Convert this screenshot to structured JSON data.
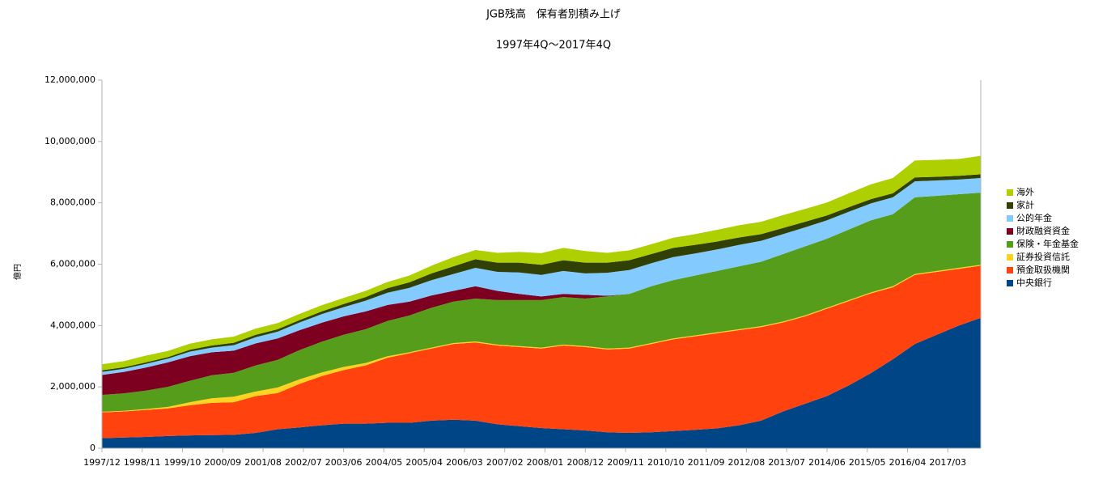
{
  "chart_data": {
    "type": "stacked-area",
    "title": "JGB残高　保有者別積み上げ",
    "subtitle": "1997年4Q～2017年4Q",
    "y_label": "億円",
    "x": [
      "1997/12",
      "1998/06",
      "1998/12",
      "1999/06",
      "1999/12",
      "2000/06",
      "2000/12",
      "2001/06",
      "2001/12",
      "2002/06",
      "2002/12",
      "2003/06",
      "2003/12",
      "2004/06",
      "2004/12",
      "2005/06",
      "2005/12",
      "2006/06",
      "2006/12",
      "2007/06",
      "2007/12",
      "2008/06",
      "2008/12",
      "2009/06",
      "2009/12",
      "2010/06",
      "2010/12",
      "2011/06",
      "2011/12",
      "2012/06",
      "2012/12",
      "2013/06",
      "2013/12",
      "2014/06",
      "2014/12",
      "2015/06",
      "2015/12",
      "2016/06",
      "2016/12",
      "2017/06",
      "2017/12"
    ],
    "xlim": [
      "1997/12",
      "2017/12"
    ],
    "xticks": [
      "1997/12",
      "1998/11",
      "1999/10",
      "2000/09",
      "2001/08",
      "2002/07",
      "2003/06",
      "2004/05",
      "2005/04",
      "2006/03",
      "2007/02",
      "2008/01",
      "2008/12",
      "2009/11",
      "2010/10",
      "2011/09",
      "2012/08",
      "2013/07",
      "2014/06",
      "2015/05",
      "2016/04",
      "2017/03"
    ],
    "ylim": [
      0,
      12000000
    ],
    "yticks": [
      0,
      {
        "value": 2000000,
        "label": "2,000,000"
      },
      {
        "value": 4000000,
        "label": "4,000,000"
      },
      {
        "value": 6000000,
        "label": "6,000,000"
      },
      {
        "value": 8000000,
        "label": "8,000,000"
      },
      {
        "value": 10000000,
        "label": "10,000,000"
      },
      {
        "value": 12000000,
        "label": "12,000,000"
      }
    ],
    "series": [
      {
        "name": "中央銀行",
        "color": "#004586",
        "values": [
          330000,
          350000,
          370000,
          400000,
          420000,
          430000,
          440000,
          500000,
          620000,
          680000,
          750000,
          800000,
          800000,
          830000,
          830000,
          900000,
          930000,
          900000,
          780000,
          720000,
          660000,
          620000,
          580000,
          520000,
          500000,
          520000,
          560000,
          600000,
          650000,
          750000,
          900000,
          1200000,
          1450000,
          1700000,
          2050000,
          2450000,
          2900000,
          3400000,
          3700000,
          4000000,
          4250000
        ]
      },
      {
        "name": "預金取扱機関",
        "color": "#ff420e",
        "values": [
          840000,
          850000,
          880000,
          900000,
          980000,
          1050000,
          1060000,
          1200000,
          1180000,
          1420000,
          1600000,
          1750000,
          1900000,
          2120000,
          2270000,
          2350000,
          2470000,
          2550000,
          2570000,
          2580000,
          2590000,
          2730000,
          2720000,
          2700000,
          2750000,
          2880000,
          2990000,
          3050000,
          3100000,
          3100000,
          3050000,
          2900000,
          2850000,
          2850000,
          2750000,
          2600000,
          2350000,
          2250000,
          2050000,
          1850000,
          1700000
        ]
      },
      {
        "name": "証券投資信託",
        "color": "#ffd320",
        "values": [
          20000,
          20000,
          30000,
          50000,
          100000,
          150000,
          180000,
          150000,
          180000,
          150000,
          120000,
          100000,
          80000,
          50000,
          30000,
          30000,
          30000,
          30000,
          30000,
          30000,
          30000,
          30000,
          30000,
          30000,
          30000,
          30000,
          30000,
          30000,
          30000,
          30000,
          30000,
          30000,
          30000,
          30000,
          30000,
          30000,
          30000,
          30000,
          30000,
          30000,
          30000
        ]
      },
      {
        "name": "保険・年金基金",
        "color": "#579d1c",
        "values": [
          550000,
          570000,
          600000,
          650000,
          700000,
          750000,
          780000,
          850000,
          900000,
          950000,
          1000000,
          1050000,
          1100000,
          1150000,
          1200000,
          1300000,
          1350000,
          1400000,
          1450000,
          1500000,
          1550000,
          1550000,
          1550000,
          1700000,
          1750000,
          1850000,
          1900000,
          1950000,
          2000000,
          2050000,
          2100000,
          2200000,
          2250000,
          2250000,
          2300000,
          2350000,
          2350000,
          2500000,
          2450000,
          2400000,
          2350000
        ]
      },
      {
        "name": "財政融資資金",
        "color": "#7e0021",
        "values": [
          650000,
          700000,
          750000,
          800000,
          800000,
          750000,
          720000,
          720000,
          700000,
          650000,
          620000,
          600000,
          580000,
          520000,
          450000,
          400000,
          350000,
          400000,
          300000,
          200000,
          120000,
          100000,
          120000,
          20000,
          0,
          0,
          0,
          0,
          0,
          0,
          0,
          0,
          0,
          0,
          0,
          0,
          0,
          0,
          0,
          0,
          0
        ]
      },
      {
        "name": "公的年金",
        "color": "#83caff",
        "values": [
          100000,
          100000,
          120000,
          120000,
          150000,
          150000,
          180000,
          200000,
          220000,
          250000,
          280000,
          300000,
          350000,
          400000,
          450000,
          500000,
          550000,
          600000,
          620000,
          700000,
          700000,
          750000,
          700000,
          750000,
          780000,
          750000,
          750000,
          720000,
          700000,
          700000,
          680000,
          650000,
          620000,
          600000,
          580000,
          550000,
          550000,
          520000,
          500000,
          480000,
          480000
        ]
      },
      {
        "name": "家計",
        "color": "#314004",
        "values": [
          50000,
          50000,
          50000,
          50000,
          60000,
          70000,
          80000,
          80000,
          80000,
          80000,
          90000,
          100000,
          120000,
          150000,
          180000,
          220000,
          250000,
          280000,
          300000,
          320000,
          330000,
          350000,
          350000,
          330000,
          320000,
          300000,
          300000,
          280000,
          260000,
          240000,
          220000,
          200000,
          180000,
          160000,
          150000,
          140000,
          130000,
          130000,
          120000,
          120000,
          120000
        ]
      },
      {
        "name": "海外",
        "color": "#aecf00",
        "values": [
          200000,
          200000,
          220000,
          200000,
          200000,
          200000,
          200000,
          200000,
          200000,
          200000,
          200000,
          200000,
          200000,
          200000,
          220000,
          250000,
          300000,
          300000,
          320000,
          350000,
          380000,
          400000,
          380000,
          320000,
          320000,
          320000,
          330000,
          350000,
          380000,
          400000,
          400000,
          420000,
          420000,
          420000,
          450000,
          480000,
          500000,
          550000,
          550000,
          550000,
          600000
        ]
      }
    ]
  }
}
